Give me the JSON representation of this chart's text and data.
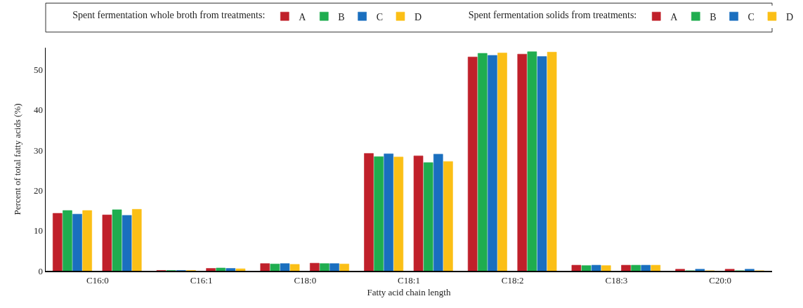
{
  "chart_data": {
    "type": "bar",
    "xlabel": "Fatty acid chain length",
    "ylabel": "Percent of total fatty acids (%)",
    "categories": [
      "C16:0",
      "C16:1",
      "C18:0",
      "C18:1",
      "C18:2",
      "C18:3",
      "C20:0"
    ],
    "series": [
      {
        "name": "A",
        "color": "#c0202a",
        "values": [
          14.3,
          0.1,
          1.8,
          29.2,
          53.2,
          1.4,
          0.4
        ]
      },
      {
        "name": "B",
        "color": "#1fad4f",
        "values": [
          15.0,
          0.1,
          1.7,
          28.4,
          54.1,
          1.3,
          0
        ]
      },
      {
        "name": "C",
        "color": "#1a6fbf",
        "values": [
          14.1,
          0.1,
          1.8,
          29.1,
          53.6,
          1.4,
          0.4
        ]
      },
      {
        "name": "D",
        "color": "#fbbf16",
        "values": [
          15.0,
          0.1,
          1.6,
          28.3,
          54.2,
          1.3,
          0
        ]
      },
      {
        "name": "A",
        "color": "#c0202a",
        "values": [
          13.9,
          0.6,
          1.9,
          28.6,
          53.9,
          1.4,
          0.4
        ]
      },
      {
        "name": "B",
        "color": "#1fad4f",
        "values": [
          15.2,
          0.7,
          1.8,
          26.9,
          54.5,
          1.4,
          0
        ]
      },
      {
        "name": "C",
        "color": "#1a6fbf",
        "values": [
          13.8,
          0.6,
          1.8,
          29.0,
          53.3,
          1.4,
          0.4
        ]
      },
      {
        "name": "D",
        "color": "#fbbf16",
        "values": [
          15.3,
          0.5,
          1.7,
          27.2,
          54.4,
          1.4,
          0
        ]
      }
    ],
    "annotations": [
      "Spent fermentation whole broth from treatments:",
      "Spent fermentation solids from treatments:"
    ],
    "ylim": [
      0,
      55.5
    ],
    "yticks": [
      0,
      10,
      20,
      30,
      40,
      50
    ],
    "grid": false,
    "legend": "top"
  }
}
